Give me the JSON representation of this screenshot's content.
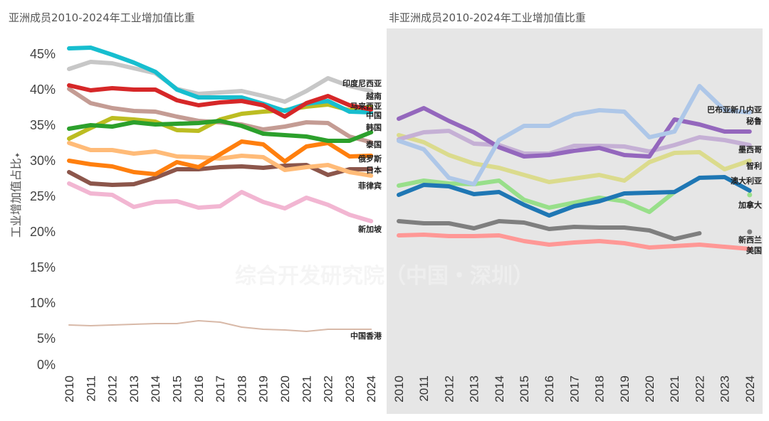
{
  "chart_data": [
    {
      "type": "line",
      "title": "亚洲成员2010-2024年工业增加值比重",
      "xlabel": "",
      "ylabel": "工业增加值占比",
      "x": [
        "2010",
        "2011",
        "2012",
        "2013",
        "2014",
        "2015",
        "2016",
        "2017",
        "2018",
        "2019",
        "2020",
        "2021",
        "2022",
        "2023",
        "2024"
      ],
      "ylim": [
        0,
        45
      ],
      "yticks": [
        "0%",
        "5%",
        "10%",
        "15%",
        "20%",
        "25%",
        "30%",
        "35%",
        "40%",
        "45%"
      ],
      "grid": false,
      "legend": "direct labels at line ends (right)",
      "series": [
        {
          "name": "中国香港",
          "color": "#d8b9a8",
          "width": "thin",
          "values": [
            6.9,
            6.8,
            6.9,
            7.0,
            7.1,
            7.1,
            7.5,
            7.3,
            6.6,
            6.3,
            6.2,
            6.0,
            6.3,
            6.3,
            6.3
          ]
        },
        {
          "name": "新加坡",
          "color": "#f2b6d2",
          "values": [
            26.8,
            25.4,
            25.2,
            23.5,
            24.2,
            24.3,
            23.4,
            23.6,
            25.6,
            24.2,
            23.3,
            24.8,
            23.8,
            22.4,
            21.5
          ]
        },
        {
          "name": "日本",
          "color": "#8c564b",
          "values": [
            28.4,
            26.8,
            26.6,
            26.7,
            27.6,
            28.8,
            28.8,
            29.1,
            29.2,
            29.0,
            29.3,
            29.4,
            28.0,
            28.8,
            28.8
          ]
        },
        {
          "name": "菲律宾",
          "color": "#ffbb78",
          "values": [
            32.5,
            31.5,
            31.5,
            31.0,
            31.3,
            30.6,
            30.5,
            30.3,
            30.7,
            30.5,
            28.7,
            29.1,
            29.4,
            28.4,
            27.9
          ]
        },
        {
          "name": "俄罗斯",
          "color": "#ff7f0e",
          "values": [
            30.0,
            29.5,
            29.2,
            28.4,
            28.1,
            29.8,
            29.1,
            30.9,
            32.7,
            32.3,
            29.9,
            32.0,
            32.5,
            30.6,
            30.7
          ]
        },
        {
          "name": "泰国",
          "color": "#c49c94",
          "values": [
            40.1,
            38.1,
            37.4,
            37.0,
            36.9,
            36.2,
            35.6,
            35.4,
            35.1,
            34.4,
            34.8,
            35.4,
            35.3,
            33.4,
            32.6
          ]
        },
        {
          "name": "马来西亚",
          "color": "#bcbd22",
          "values": [
            33.1,
            34.6,
            36.0,
            35.8,
            35.5,
            34.3,
            34.2,
            35.8,
            36.6,
            36.9,
            37.1,
            37.6,
            37.9,
            37.1,
            37.6
          ]
        },
        {
          "name": "韩国",
          "color": "#2ca02c",
          "values": [
            34.5,
            35.0,
            34.8,
            35.4,
            35.1,
            35.2,
            35.3,
            35.6,
            34.9,
            33.8,
            33.6,
            33.4,
            32.8,
            32.8,
            34.0
          ]
        },
        {
          "name": "印度尼西亚",
          "color": "#c7c7c7",
          "values": [
            42.9,
            43.9,
            43.7,
            43.0,
            42.3,
            40.1,
            39.4,
            39.6,
            39.8,
            39.1,
            38.3,
            39.8,
            41.6,
            40.5,
            39.8
          ]
        },
        {
          "name": "中国",
          "color": "#17becf",
          "values": [
            45.8,
            45.9,
            44.9,
            43.8,
            42.5,
            40.0,
            38.9,
            38.9,
            38.9,
            38.0,
            37.0,
            38.0,
            38.4,
            36.9,
            36.8
          ]
        },
        {
          "name": "越南",
          "color": "#d62728",
          "values": [
            40.6,
            39.9,
            40.2,
            40.0,
            40.0,
            38.5,
            37.8,
            38.2,
            38.4,
            37.8,
            36.2,
            38.1,
            39.1,
            37.8,
            37.2
          ]
        }
      ]
    },
    {
      "type": "line",
      "title": "非亚洲成员2010-2024年工业增加值比重",
      "xlabel": "",
      "ylabel": "",
      "x": [
        "2010",
        "2011",
        "2012",
        "2013",
        "2014",
        "2015",
        "2016",
        "2017",
        "2018",
        "2019",
        "2020",
        "2021",
        "2022",
        "2023",
        "2024"
      ],
      "ylim": [
        0,
        45
      ],
      "grid": false,
      "legend": "direct labels at line ends (right)",
      "background": "#e6e6e6",
      "series": [
        {
          "name": "美国",
          "color": "#ff9896",
          "values": [
            19.5,
            19.6,
            19.4,
            19.4,
            19.5,
            18.7,
            18.2,
            18.5,
            18.7,
            18.4,
            17.8,
            18.0,
            18.2,
            17.9,
            17.6
          ]
        },
        {
          "name": "新西兰",
          "color": "#7f7f7f",
          "values": [
            21.5,
            21.2,
            21.2,
            20.5,
            21.5,
            21.3,
            20.4,
            20.7,
            20.6,
            20.6,
            20.2,
            19.0,
            19.8,
            null,
            20.0
          ]
        },
        {
          "name": "加拿大",
          "color": "#98df8a",
          "values": [
            26.5,
            27.2,
            26.8,
            26.7,
            27.2,
            24.5,
            23.4,
            24.1,
            24.8,
            24.3,
            22.8,
            25.6,
            null,
            null,
            25.2
          ]
        },
        {
          "name": "澳大利亚",
          "color": "#1f77b4",
          "values": [
            25.2,
            26.6,
            26.4,
            25.3,
            25.6,
            23.8,
            22.3,
            23.6,
            24.3,
            25.4,
            25.5,
            25.6,
            27.6,
            27.7,
            25.8
          ]
        },
        {
          "name": "智利",
          "color": "#dbdb8d",
          "values": [
            33.6,
            32.6,
            30.8,
            29.6,
            29.0,
            28.0,
            27.0,
            27.5,
            28.0,
            27.2,
            29.8,
            31.1,
            31.2,
            28.8,
            30.0
          ]
        },
        {
          "name": "墨西哥",
          "color": "#c5b0d5",
          "values": [
            33.0,
            34.0,
            34.2,
            32.4,
            32.2,
            31.0,
            31.0,
            32.1,
            32.1,
            32.0,
            31.3,
            32.2,
            33.3,
            32.9,
            32.2
          ]
        },
        {
          "name": "秘鲁",
          "color": "#9467bd",
          "values": [
            35.9,
            37.4,
            35.6,
            34.0,
            31.9,
            30.6,
            30.8,
            31.4,
            31.8,
            30.8,
            30.6,
            35.8,
            35.1,
            34.1,
            34.1
          ]
        },
        {
          "name": "巴布亚新几内亚",
          "color": "#aec7e8",
          "values": [
            32.8,
            31.6,
            27.6,
            26.7,
            32.9,
            34.9,
            34.9,
            36.5,
            37.1,
            36.9,
            33.3,
            34.1,
            40.5,
            37.1,
            36.8
          ]
        }
      ]
    }
  ],
  "watermark": "综合开发研究院（中国・深圳）",
  "ylabel_marker": "✦"
}
